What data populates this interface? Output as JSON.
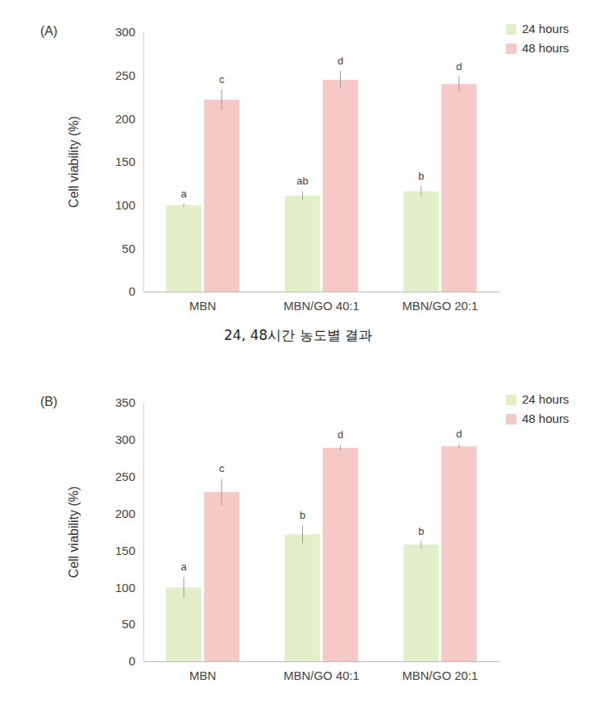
{
  "chart_data": [
    {
      "type": "bar",
      "title": "(A)",
      "y_label": "Cell viability (%)",
      "categories": [
        "MBN",
        "MBN/GO 40:1",
        "MBN/GO 20:1"
      ],
      "series": [
        {
          "name": "24 hours",
          "color": "#e3efcb",
          "values": [
            100,
            111,
            116
          ],
          "errors": [
            2,
            5,
            6
          ],
          "letters": [
            "a",
            "ab",
            "b"
          ]
        },
        {
          "name": "48 hours",
          "color": "#f5c9c5",
          "values": [
            222,
            245,
            240
          ],
          "errors": [
            12,
            10,
            9
          ],
          "letters": [
            "c",
            "d",
            "d"
          ]
        }
      ],
      "ylim": [
        0,
        300
      ],
      "yticks": [
        0,
        50,
        100,
        150,
        200,
        250,
        300
      ],
      "grid": false,
      "legend": "top-right",
      "annotations": [
        "24, 48시간 농도별 결과"
      ]
    },
    {
      "type": "bar",
      "title": "(B)",
      "y_label": "Cell viability (%)",
      "categories": [
        "MBN",
        "MBN/GO 40:1",
        "MBN/GO 20:1"
      ],
      "series": [
        {
          "name": "24 hours",
          "color": "#e3efcb",
          "values": [
            100,
            172,
            158
          ],
          "errors": [
            14,
            12,
            5
          ],
          "letters": [
            "a",
            "b",
            "b"
          ]
        },
        {
          "name": "48 hours",
          "color": "#f5c9c5",
          "values": [
            229,
            289,
            291
          ],
          "errors": [
            18,
            4,
            3
          ],
          "letters": [
            "c",
            "d",
            "d"
          ]
        }
      ],
      "ylim": [
        0,
        350
      ],
      "yticks": [
        0,
        50,
        100,
        150,
        200,
        250,
        300,
        350
      ],
      "grid": false,
      "legend": "top-right"
    }
  ]
}
